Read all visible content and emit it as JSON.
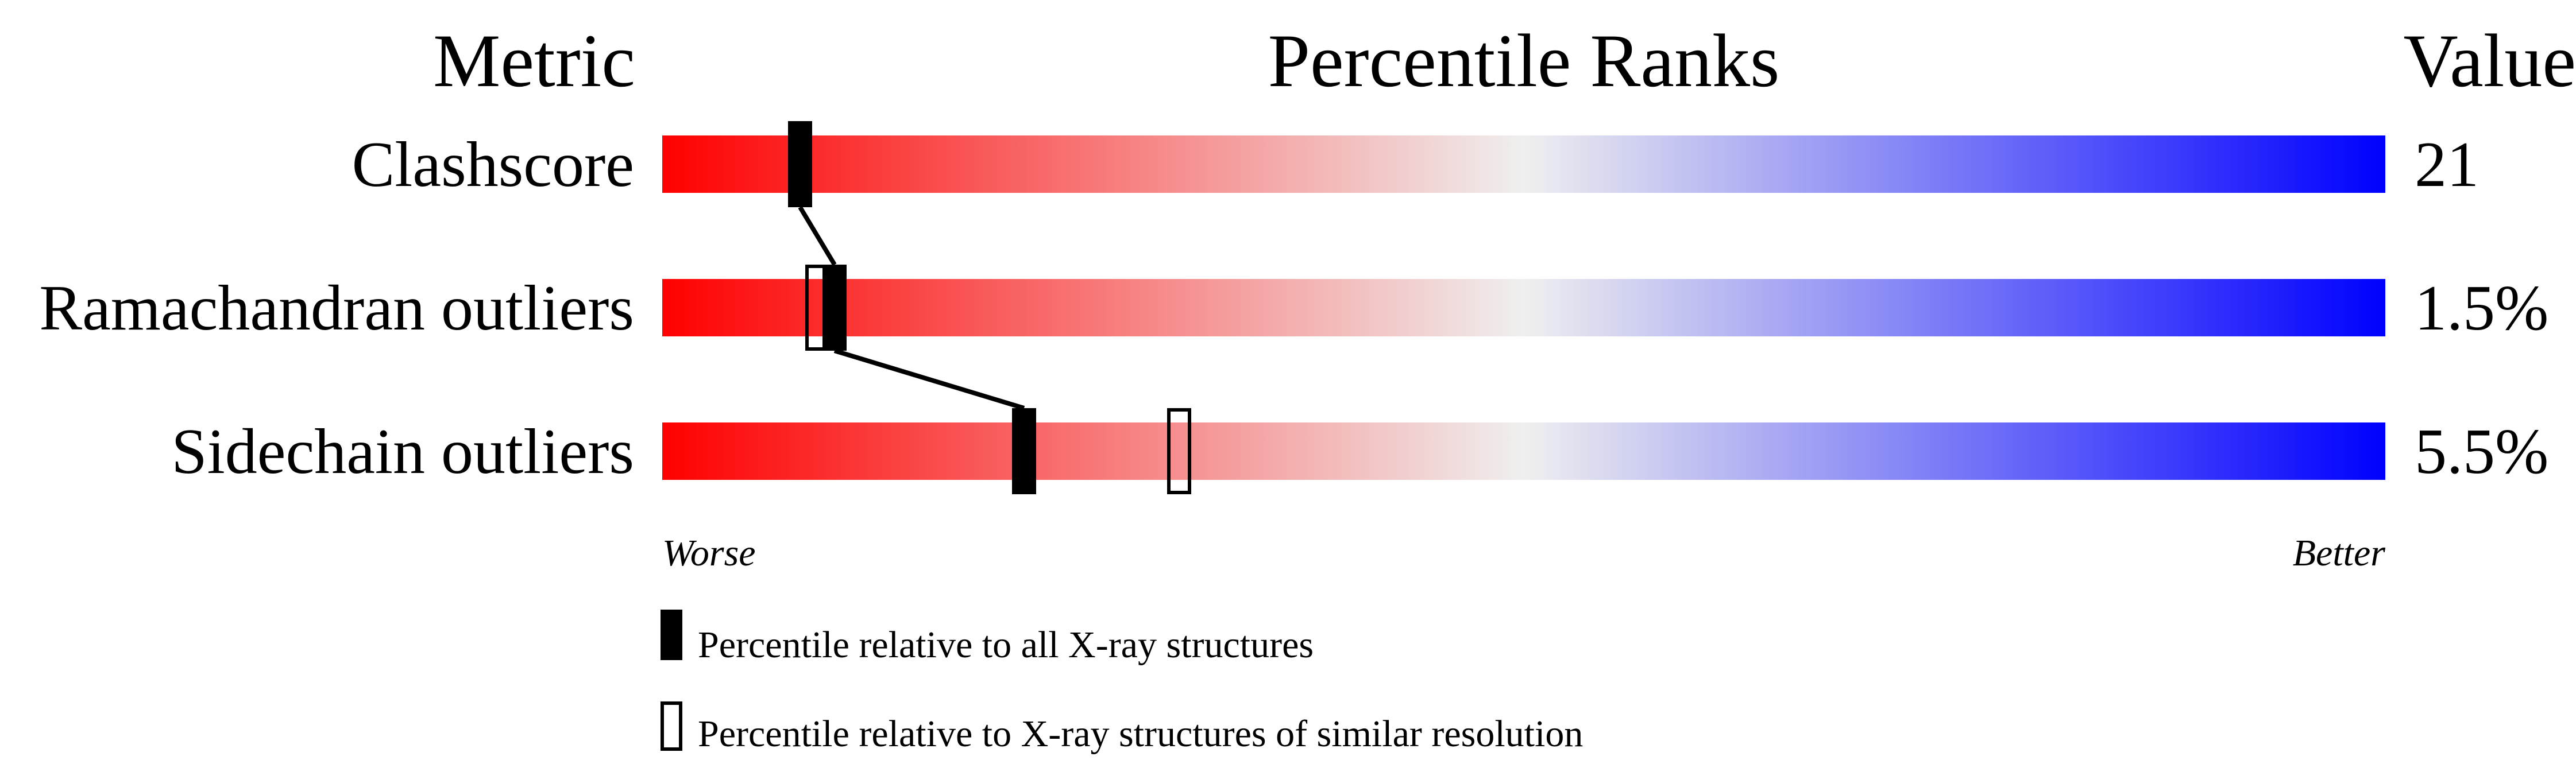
{
  "chart_data": {
    "type": "percentile-ranks",
    "headers": {
      "metric": "Metric",
      "title": "Percentile Ranks",
      "value": "Value"
    },
    "xlim": [
      0,
      100
    ],
    "axis_labels": {
      "left": "Worse",
      "right": "Better"
    },
    "gradient_colors": [
      "#ff0000",
      "#efefef",
      "#0000ff"
    ],
    "metrics": [
      {
        "label": "Clashscore",
        "value": "21",
        "percentile_all": 8,
        "percentile_similar": null
      },
      {
        "label": "Ramachandran outliers",
        "value": "1.5%",
        "percentile_all": 10,
        "percentile_similar": 9
      },
      {
        "label": "Sidechain outliers",
        "value": "5.5%",
        "percentile_all": 21,
        "percentile_similar": 30
      }
    ],
    "legend": [
      {
        "marker": "filled",
        "label": "Percentile relative to all X-ray structures"
      },
      {
        "marker": "hollow",
        "label": "Percentile relative to X-ray structures of similar resolution"
      }
    ]
  }
}
